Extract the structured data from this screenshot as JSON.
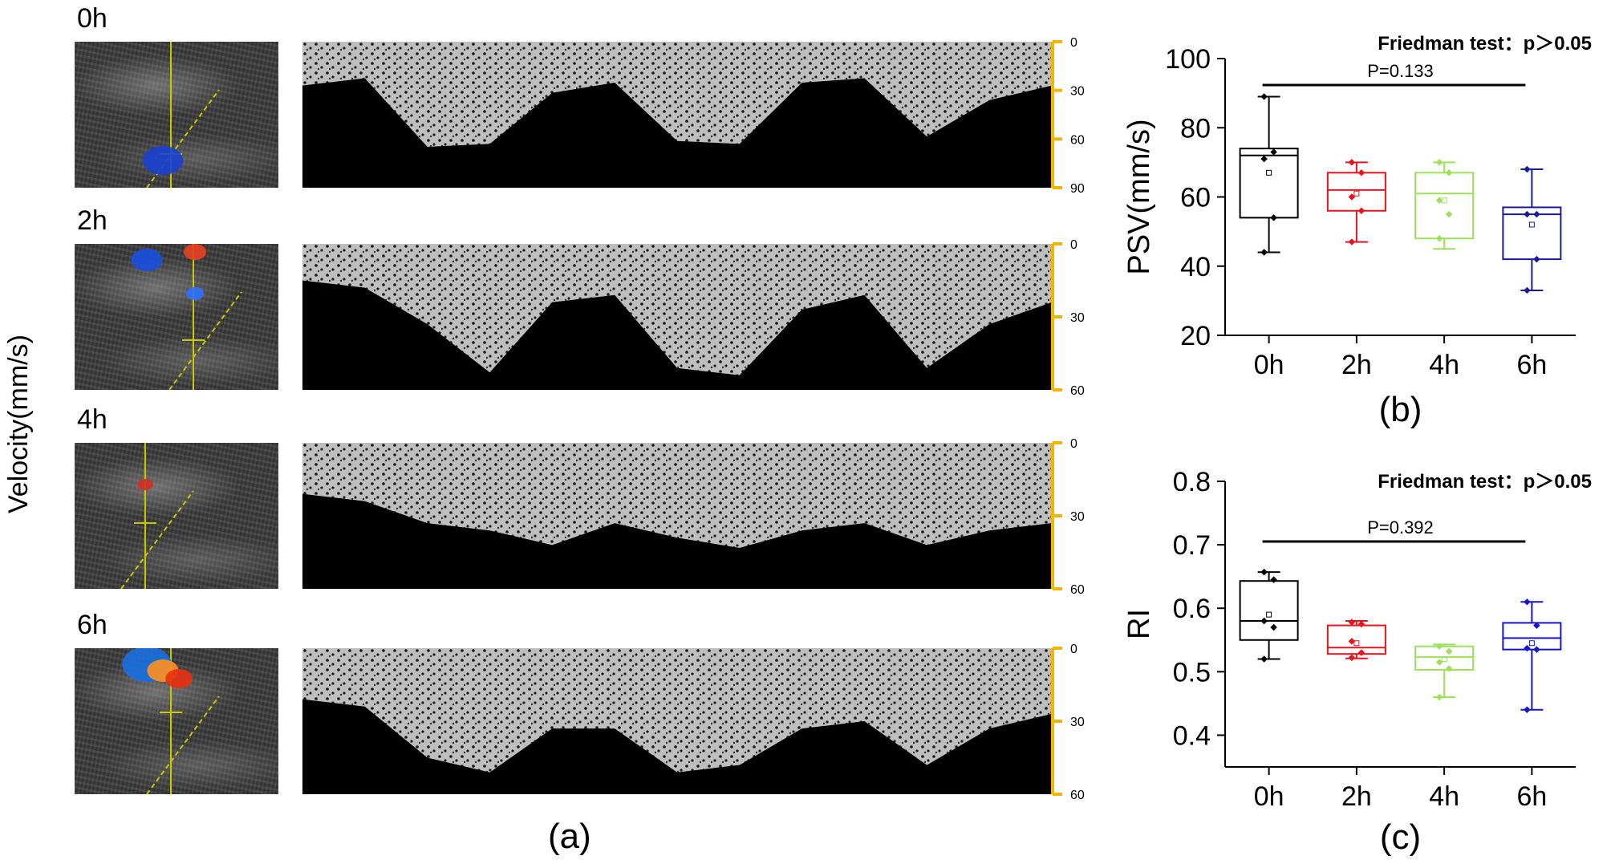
{
  "panel_a": {
    "y_label": "Velocity(mm/s)",
    "caption": "(a)",
    "rows": [
      {
        "label": "0h",
        "scale_ticks": [
          "0",
          "30",
          "60",
          "90"
        ],
        "scale_max": 90
      },
      {
        "label": "2h",
        "scale_ticks": [
          "0",
          "30",
          "60"
        ],
        "scale_max": 60
      },
      {
        "label": "4h",
        "scale_ticks": [
          "0",
          "30",
          "60"
        ],
        "scale_max": 60
      },
      {
        "label": "6h",
        "scale_ticks": [
          "0",
          "30",
          "60"
        ],
        "scale_max": 60
      }
    ],
    "colors": {
      "scale": "#f5b400",
      "caliper": "#c8c800"
    }
  },
  "chart_data": [
    {
      "type": "box",
      "caption": "(b)",
      "ylabel": "PSV(mm/s)",
      "xlabel": "",
      "title": "",
      "annotation": "Friedman test：p＞0.05",
      "pvalue_label": "P=0.133",
      "categories": [
        "0h",
        "2h",
        "4h",
        "6h"
      ],
      "ylim": [
        20,
        100
      ],
      "yticks": [
        20,
        40,
        60,
        80,
        100
      ],
      "boxes": [
        {
          "min": 44,
          "q1": 54,
          "median": 72,
          "q3": 74,
          "max": 89,
          "mean": 67,
          "points": [
            89,
            73,
            71,
            54,
            44
          ]
        },
        {
          "min": 47,
          "q1": 56,
          "median": 62,
          "q3": 67,
          "max": 70,
          "mean": 61,
          "points": [
            70,
            67,
            60,
            56,
            47
          ]
        },
        {
          "min": 45,
          "q1": 48,
          "median": 61,
          "q3": 67,
          "max": 70,
          "mean": 59,
          "points": [
            70,
            67,
            59,
            55,
            48
          ]
        },
        {
          "min": 33,
          "q1": 42,
          "median": 55,
          "q3": 57,
          "max": 68,
          "mean": 52,
          "points": [
            68,
            55,
            55,
            42,
            33
          ]
        }
      ],
      "colors": [
        "#000000",
        "#e8141b",
        "#9be25a",
        "#1a1a9c"
      ]
    },
    {
      "type": "box",
      "caption": "(c)",
      "ylabel": "RI",
      "xlabel": "",
      "title": "",
      "annotation": "Friedman test：p＞0.05",
      "pvalue_label": "P=0.392",
      "categories": [
        "0h",
        "2h",
        "4h",
        "6h"
      ],
      "ylim": [
        0.35,
        0.8
      ],
      "yticks": [
        0.4,
        0.5,
        0.6,
        0.7,
        0.8
      ],
      "ytick_labels": [
        "0.4",
        "0.5",
        "0.6",
        "0.7",
        "0.8"
      ],
      "boxes": [
        {
          "min": 0.52,
          "q1": 0.55,
          "median": 0.58,
          "q3": 0.643,
          "max": 0.657,
          "mean": 0.59,
          "points": [
            0.657,
            0.645,
            0.58,
            0.57,
            0.52
          ]
        },
        {
          "min": 0.521,
          "q1": 0.528,
          "median": 0.538,
          "q3": 0.573,
          "max": 0.58,
          "mean": 0.545,
          "points": [
            0.578,
            0.575,
            0.548,
            0.53,
            0.522
          ]
        },
        {
          "min": 0.46,
          "q1": 0.503,
          "median": 0.523,
          "q3": 0.54,
          "max": 0.543,
          "mean": 0.52,
          "points": [
            0.54,
            0.532,
            0.515,
            0.505,
            0.46
          ]
        },
        {
          "min": 0.44,
          "q1": 0.535,
          "median": 0.553,
          "q3": 0.577,
          "max": 0.61,
          "mean": 0.545,
          "points": [
            0.61,
            0.573,
            0.537,
            0.535,
            0.44
          ]
        }
      ],
      "colors": [
        "#000000",
        "#e8141b",
        "#9be25a",
        "#1515d0"
      ]
    }
  ]
}
